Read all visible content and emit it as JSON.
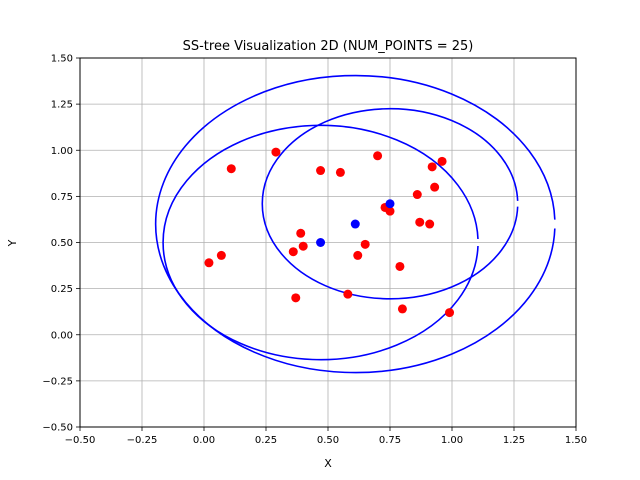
{
  "chart_data": {
    "type": "scatter",
    "title": "SS-tree Visualization 2D (NUM_POINTS = 25)",
    "xlabel": "X",
    "ylabel": "Y",
    "xlim": [
      -0.5,
      1.5
    ],
    "ylim": [
      -0.5,
      1.5
    ],
    "xticks": [
      -0.5,
      -0.25,
      0.0,
      0.25,
      0.5,
      0.75,
      1.0,
      1.25,
      1.5
    ],
    "yticks": [
      -0.5,
      -0.25,
      0.0,
      0.25,
      0.5,
      0.75,
      1.0,
      1.25,
      1.5
    ],
    "xtick_labels": [
      "−0.50",
      "−0.25",
      "0.00",
      "0.25",
      "0.50",
      "0.75",
      "1.00",
      "1.25",
      "1.50"
    ],
    "ytick_labels": [
      "−0.50",
      "−0.25",
      "0.00",
      "0.25",
      "0.50",
      "0.75",
      "1.00",
      "1.25",
      "1.50"
    ],
    "grid": true,
    "colors": {
      "points": "#ff0000",
      "centroids": "#0000ff",
      "circles": "#0000ff",
      "grid": "#b0b0b0"
    },
    "points": [
      [
        0.02,
        0.39
      ],
      [
        0.07,
        0.43
      ],
      [
        0.11,
        0.9
      ],
      [
        0.29,
        0.99
      ],
      [
        0.36,
        0.45
      ],
      [
        0.37,
        0.2
      ],
      [
        0.39,
        0.55
      ],
      [
        0.4,
        0.48
      ],
      [
        0.47,
        0.89
      ],
      [
        0.55,
        0.88
      ],
      [
        0.58,
        0.22
      ],
      [
        0.62,
        0.43
      ],
      [
        0.65,
        0.49
      ],
      [
        0.7,
        0.97
      ],
      [
        0.73,
        0.69
      ],
      [
        0.75,
        0.67
      ],
      [
        0.79,
        0.37
      ],
      [
        0.8,
        0.14
      ],
      [
        0.86,
        0.76
      ],
      [
        0.87,
        0.61
      ],
      [
        0.91,
        0.6
      ],
      [
        0.92,
        0.91
      ],
      [
        0.93,
        0.8
      ],
      [
        0.96,
        0.94
      ],
      [
        0.99,
        0.12
      ]
    ],
    "centroids": [
      [
        0.47,
        0.5
      ],
      [
        0.61,
        0.6
      ],
      [
        0.75,
        0.71
      ]
    ],
    "circles": [
      {
        "center": [
          0.47,
          0.5
        ],
        "radius": 0.635
      },
      {
        "center": [
          0.61,
          0.6
        ],
        "radius": 0.805
      },
      {
        "center": [
          0.75,
          0.71
        ],
        "radius": 0.515
      }
    ]
  }
}
